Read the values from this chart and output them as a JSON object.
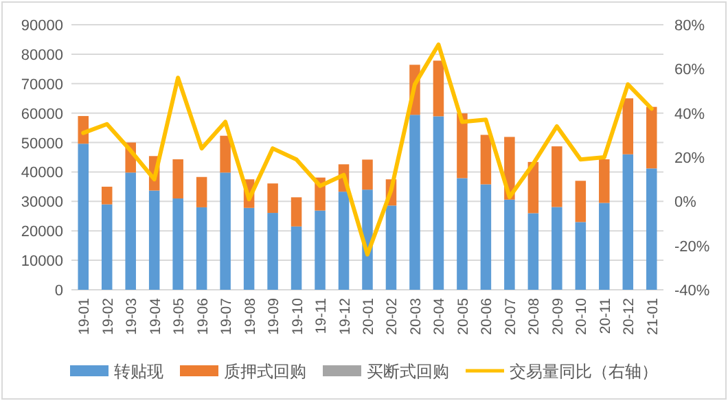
{
  "chart_data": {
    "type": "bar",
    "stacked": true,
    "categories": [
      "19-01",
      "19-02",
      "19-03",
      "19-04",
      "19-05",
      "19-06",
      "19-07",
      "19-08",
      "19-09",
      "19-10",
      "19-11",
      "19-12",
      "20-01",
      "20-02",
      "20-03",
      "20-04",
      "20-05",
      "20-06",
      "20-07",
      "20-08",
      "20-09",
      "20-10",
      "20-11",
      "20-12",
      "21-01"
    ],
    "series": [
      {
        "name": "转贴现",
        "color": "#5b9bd5",
        "values": [
          49600,
          29000,
          39800,
          33700,
          31000,
          28000,
          39800,
          27800,
          26100,
          21500,
          26900,
          33300,
          34000,
          28600,
          59400,
          58900,
          37900,
          35800,
          30600,
          26000,
          28100,
          23000,
          29500,
          46000,
          41200
        ]
      },
      {
        "name": "质押式回购",
        "color": "#ed7d31",
        "values": [
          9400,
          6000,
          10200,
          11700,
          13300,
          10300,
          12500,
          9700,
          10000,
          9900,
          11200,
          9300,
          10200,
          8900,
          17000,
          18900,
          22000,
          16800,
          21300,
          17400,
          20600,
          14000,
          14800,
          19000,
          20900
        ]
      },
      {
        "name": "买断式回购",
        "color": "#a5a5a5",
        "values": [
          null,
          null,
          null,
          null,
          null,
          null,
          null,
          null,
          null,
          null,
          null,
          null,
          null,
          null,
          null,
          null,
          null,
          null,
          null,
          null,
          null,
          null,
          null,
          null,
          null
        ]
      },
      {
        "name": "交易量同比（右轴）",
        "type": "line",
        "axis": "y2",
        "color": "#ffc000",
        "values": [
          31,
          35,
          23,
          10,
          56,
          24,
          36,
          1,
          24,
          19,
          7,
          12,
          -24,
          5,
          53,
          71,
          36,
          37,
          2,
          17,
          34,
          19,
          20,
          53,
          42
        ]
      }
    ],
    "ylim": [
      0,
      90000
    ],
    "yticks": [
      0,
      10000,
      20000,
      30000,
      40000,
      50000,
      60000,
      70000,
      80000,
      90000
    ],
    "y2lim": [
      -40,
      80
    ],
    "y2ticks": [
      {
        "value": -40,
        "label": "-40%"
      },
      {
        "value": -20,
        "label": "-20%"
      },
      {
        "value": 0,
        "label": "0%"
      },
      {
        "value": 20,
        "label": "20%"
      },
      {
        "value": 40,
        "label": "40%"
      },
      {
        "value": 60,
        "label": "60%"
      },
      {
        "value": 80,
        "label": "80%"
      }
    ],
    "grid": "y",
    "legend": "bottom"
  }
}
